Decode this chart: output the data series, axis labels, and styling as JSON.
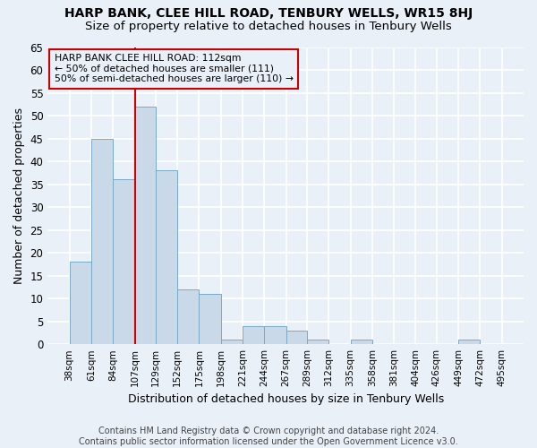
{
  "title": "HARP BANK, CLEE HILL ROAD, TENBURY WELLS, WR15 8HJ",
  "subtitle": "Size of property relative to detached houses in Tenbury Wells",
  "xlabel": "Distribution of detached houses by size in Tenbury Wells",
  "ylabel": "Number of detached properties",
  "bar_color": "#c9d9e8",
  "bar_edge_color": "#7aaac8",
  "bar_left_edges": [
    38,
    61,
    84,
    107,
    129,
    152,
    175,
    198,
    221,
    244,
    267,
    289,
    312,
    335,
    358,
    381,
    404,
    426,
    449,
    472
  ],
  "bar_widths": [
    23,
    23,
    23,
    22,
    23,
    23,
    23,
    23,
    23,
    23,
    22,
    23,
    23,
    23,
    23,
    23,
    22,
    23,
    23,
    23
  ],
  "bar_heights": [
    18,
    45,
    36,
    52,
    38,
    12,
    11,
    1,
    4,
    4,
    3,
    1,
    0,
    1,
    0,
    0,
    0,
    0,
    1,
    0
  ],
  "tick_labels": [
    "38sqm",
    "61sqm",
    "84sqm",
    "107sqm",
    "129sqm",
    "152sqm",
    "175sqm",
    "198sqm",
    "221sqm",
    "244sqm",
    "267sqm",
    "289sqm",
    "312sqm",
    "335sqm",
    "358sqm",
    "381sqm",
    "404sqm",
    "426sqm",
    "449sqm",
    "472sqm",
    "495sqm"
  ],
  "tick_positions": [
    38,
    61,
    84,
    107,
    129,
    152,
    175,
    198,
    221,
    244,
    267,
    289,
    312,
    335,
    358,
    381,
    404,
    426,
    449,
    472,
    495
  ],
  "ylim": [
    0,
    65
  ],
  "xlim": [
    15,
    518
  ],
  "vline_x": 107,
  "vline_color": "#cc0000",
  "annotation_text": "HARP BANK CLEE HILL ROAD: 112sqm\n← 50% of detached houses are smaller (111)\n50% of semi-detached houses are larger (110) →",
  "annotation_box_edge": "#cc0000",
  "footer_text": "Contains HM Land Registry data © Crown copyright and database right 2024.\nContains public sector information licensed under the Open Government Licence v3.0.",
  "bg_color": "#eaf0f8",
  "grid_color": "#ffffff",
  "yticks": [
    0,
    5,
    10,
    15,
    20,
    25,
    30,
    35,
    40,
    45,
    50,
    55,
    60,
    65
  ]
}
